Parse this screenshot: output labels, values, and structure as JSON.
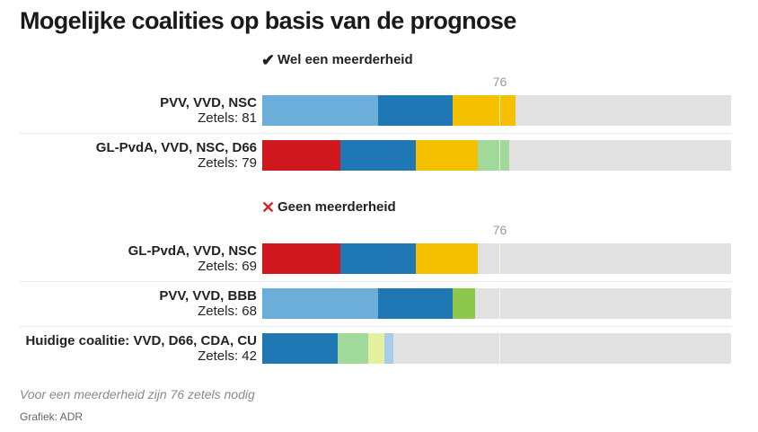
{
  "chart_data": {
    "type": "bar",
    "orientation": "horizontal",
    "stacked": true,
    "title": "Mogelijke coalities op basis van de prognose",
    "x_max": 150,
    "threshold": 76,
    "threshold_label": "76",
    "parties": {
      "PVV": {
        "color": "#6aaed9"
      },
      "VVD": {
        "color": "#1f77b4"
      },
      "NSC": {
        "color": "#f5c000"
      },
      "D66": {
        "color": "#a0d99a"
      },
      "GL-PvdA": {
        "color": "#d0191f"
      },
      "BBB": {
        "color": "#8cc84b"
      },
      "CDA": {
        "color": "#e5f0a0"
      },
      "CU": {
        "color": "#a8cdeb"
      }
    },
    "groups": [
      {
        "heading": "Wel een meerderheid",
        "icon": "check-icon",
        "rows": [
          {
            "name": "PVV, VVD, NSC",
            "seats_text": "Zetels: 81",
            "total": 81,
            "segments": [
              {
                "party": "PVV",
                "value": 37
              },
              {
                "party": "VVD",
                "value": 24
              },
              {
                "party": "NSC",
                "value": 20
              }
            ]
          },
          {
            "name": "GL-PvdA, VVD, NSC, D66",
            "seats_text": "Zetels: 79",
            "total": 79,
            "segments": [
              {
                "party": "GL-PvdA",
                "value": 25
              },
              {
                "party": "VVD",
                "value": 24
              },
              {
                "party": "NSC",
                "value": 20
              },
              {
                "party": "D66",
                "value": 10
              }
            ]
          }
        ]
      },
      {
        "heading": "Geen meerderheid",
        "icon": "cross-icon",
        "rows": [
          {
            "name": "GL-PvdA, VVD, NSC",
            "seats_text": "Zetels: 69",
            "total": 69,
            "segments": [
              {
                "party": "GL-PvdA",
                "value": 25
              },
              {
                "party": "VVD",
                "value": 24
              },
              {
                "party": "NSC",
                "value": 20
              }
            ]
          },
          {
            "name": "PVV, VVD, BBB",
            "seats_text": "Zetels: 68",
            "total": 68,
            "segments": [
              {
                "party": "PVV",
                "value": 37
              },
              {
                "party": "VVD",
                "value": 24
              },
              {
                "party": "BBB",
                "value": 7
              }
            ]
          },
          {
            "name": "Huidige coalitie: VVD, D66, CDA, CU",
            "seats_text": "Zetels: 42",
            "total": 42,
            "segments": [
              {
                "party": "VVD",
                "value": 24
              },
              {
                "party": "D66",
                "value": 10
              },
              {
                "party": "CDA",
                "value": 5
              },
              {
                "party": "CU",
                "value": 3
              }
            ]
          }
        ]
      }
    ],
    "footnote": "Voor een meerderheid zijn 76 zetels nodig",
    "credit": "Grafiek: ADR"
  }
}
